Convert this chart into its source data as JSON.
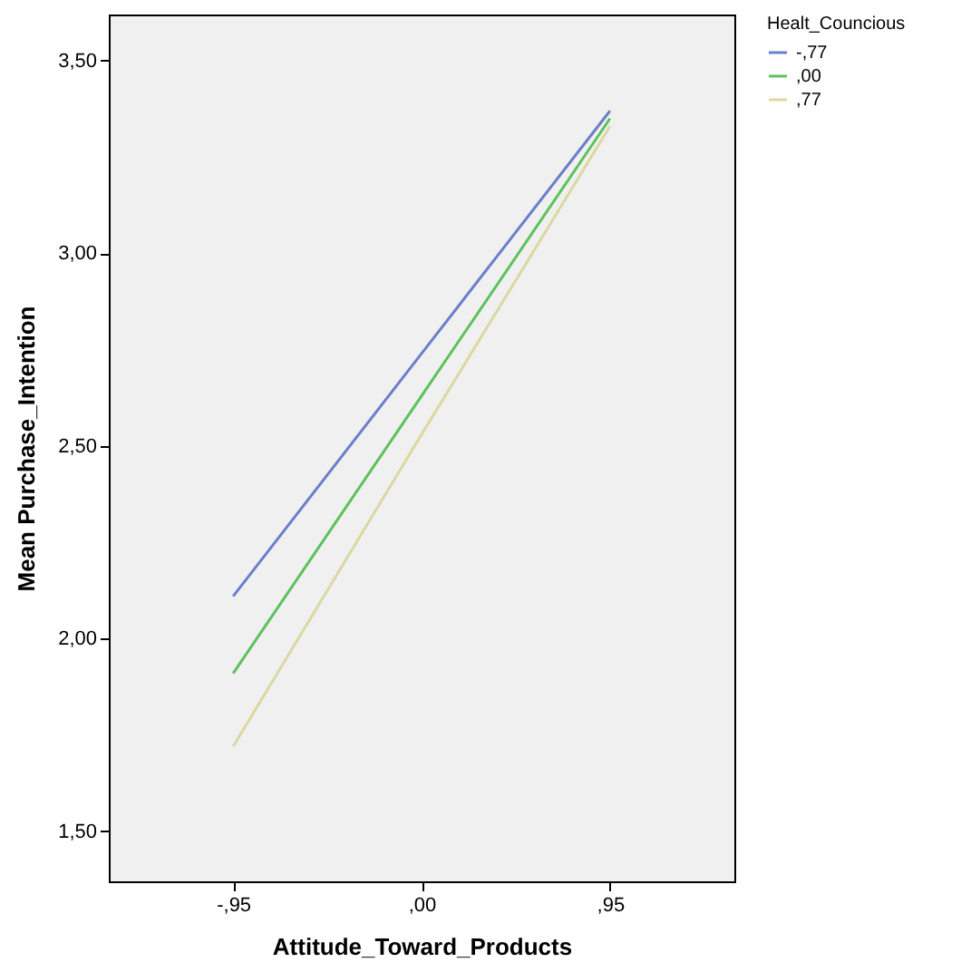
{
  "chart_data": {
    "type": "line",
    "xlabel": "Attitude_Toward_Products",
    "ylabel": "Mean Purchase_Intention",
    "legend_title": "Healt_Councious",
    "legend": "top right",
    "categories": [
      "-,95",
      ",00",
      ",95"
    ],
    "series": [
      {
        "name": "-,77",
        "color": "#6a7fcb",
        "values": [
          2.11,
          2.74,
          3.37
        ]
      },
      {
        "name": ",00",
        "color": "#5cc25c",
        "values": [
          1.91,
          2.63,
          3.35
        ]
      },
      {
        "name": ",77",
        "color": "#dcd8a0",
        "values": [
          1.72,
          2.53,
          3.33
        ]
      }
    ],
    "ylim": [
      1.37,
      3.62
    ],
    "yticks": [
      {
        "value": 1.5,
        "label": "1,50"
      },
      {
        "value": 2,
        "label": "2,00"
      },
      {
        "value": 2.5,
        "label": "2,50"
      },
      {
        "value": 3,
        "label": "3,00"
      },
      {
        "value": 3.5,
        "label": "3,50"
      }
    ],
    "grid": false
  }
}
